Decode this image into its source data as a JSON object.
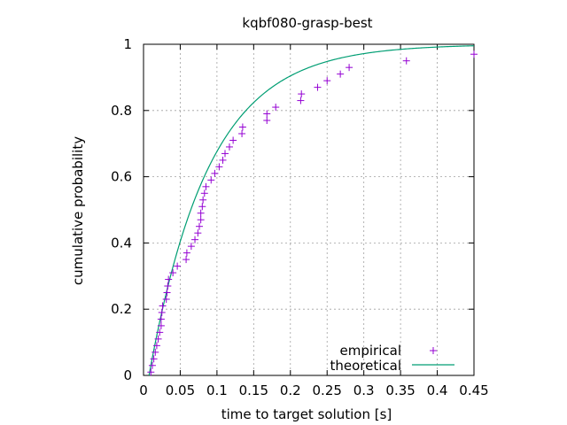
{
  "chart_data": {
    "type": "scatter",
    "title": "kqbf080-grasp-best",
    "xlabel": "time to target solution [s]",
    "ylabel": "cumulative probability",
    "xlim": [
      0,
      0.45
    ],
    "ylim": [
      0,
      1
    ],
    "x_ticks": [
      0,
      0.05,
      0.1,
      0.15,
      0.2,
      0.25,
      0.3,
      0.35,
      0.4,
      0.45
    ],
    "x_tick_labels": [
      "0",
      "0.05",
      "0.1",
      "0.15",
      "0.2",
      "0.25",
      "0.3",
      "0.35",
      "0.4",
      "0.45"
    ],
    "y_ticks": [
      0,
      0.2,
      0.4,
      0.6,
      0.8,
      1
    ],
    "y_tick_labels": [
      "0",
      "0.2",
      "0.4",
      "0.6",
      "0.8",
      "1"
    ],
    "grid": true,
    "legend_position": "bottom-right",
    "series": [
      {
        "name": "empirical",
        "style": "plus",
        "color": "#9400d3",
        "points": [
          [
            0.01,
            0.01
          ],
          [
            0.012,
            0.03
          ],
          [
            0.014,
            0.05
          ],
          [
            0.016,
            0.07
          ],
          [
            0.018,
            0.09
          ],
          [
            0.02,
            0.11
          ],
          [
            0.022,
            0.13
          ],
          [
            0.024,
            0.15
          ],
          [
            0.024,
            0.17
          ],
          [
            0.025,
            0.19
          ],
          [
            0.026,
            0.21
          ],
          [
            0.031,
            0.23
          ],
          [
            0.032,
            0.25
          ],
          [
            0.033,
            0.27
          ],
          [
            0.034,
            0.29
          ],
          [
            0.04,
            0.31
          ],
          [
            0.046,
            0.33
          ],
          [
            0.058,
            0.35
          ],
          [
            0.059,
            0.37
          ],
          [
            0.065,
            0.39
          ],
          [
            0.07,
            0.41
          ],
          [
            0.074,
            0.43
          ],
          [
            0.076,
            0.45
          ],
          [
            0.078,
            0.47
          ],
          [
            0.078,
            0.49
          ],
          [
            0.08,
            0.51
          ],
          [
            0.081,
            0.53
          ],
          [
            0.083,
            0.55
          ],
          [
            0.085,
            0.57
          ],
          [
            0.092,
            0.59
          ],
          [
            0.097,
            0.61
          ],
          [
            0.103,
            0.63
          ],
          [
            0.108,
            0.65
          ],
          [
            0.111,
            0.67
          ],
          [
            0.117,
            0.69
          ],
          [
            0.122,
            0.71
          ],
          [
            0.134,
            0.73
          ],
          [
            0.135,
            0.75
          ],
          [
            0.168,
            0.77
          ],
          [
            0.168,
            0.79
          ],
          [
            0.18,
            0.81
          ],
          [
            0.214,
            0.83
          ],
          [
            0.215,
            0.85
          ],
          [
            0.237,
            0.87
          ],
          [
            0.25,
            0.89
          ],
          [
            0.268,
            0.91
          ],
          [
            0.28,
            0.93
          ],
          [
            0.358,
            0.95
          ],
          [
            0.45,
            0.97
          ]
        ]
      },
      {
        "name": "theoretical",
        "style": "line",
        "color": "#009e73",
        "model": "exponential",
        "parameters": {
          "shift": 0.0075,
          "mean": 0.082
        },
        "points": [
          [
            0.0075,
            0.0
          ],
          [
            0.03,
            0.24
          ],
          [
            0.05,
            0.4
          ],
          [
            0.075,
            0.56
          ],
          [
            0.1,
            0.68
          ],
          [
            0.15,
            0.83
          ],
          [
            0.2,
            0.9
          ],
          [
            0.25,
            0.95
          ],
          [
            0.3,
            0.975
          ],
          [
            0.35,
            0.985
          ],
          [
            0.4,
            0.99
          ],
          [
            0.45,
            0.995
          ]
        ]
      }
    ]
  }
}
